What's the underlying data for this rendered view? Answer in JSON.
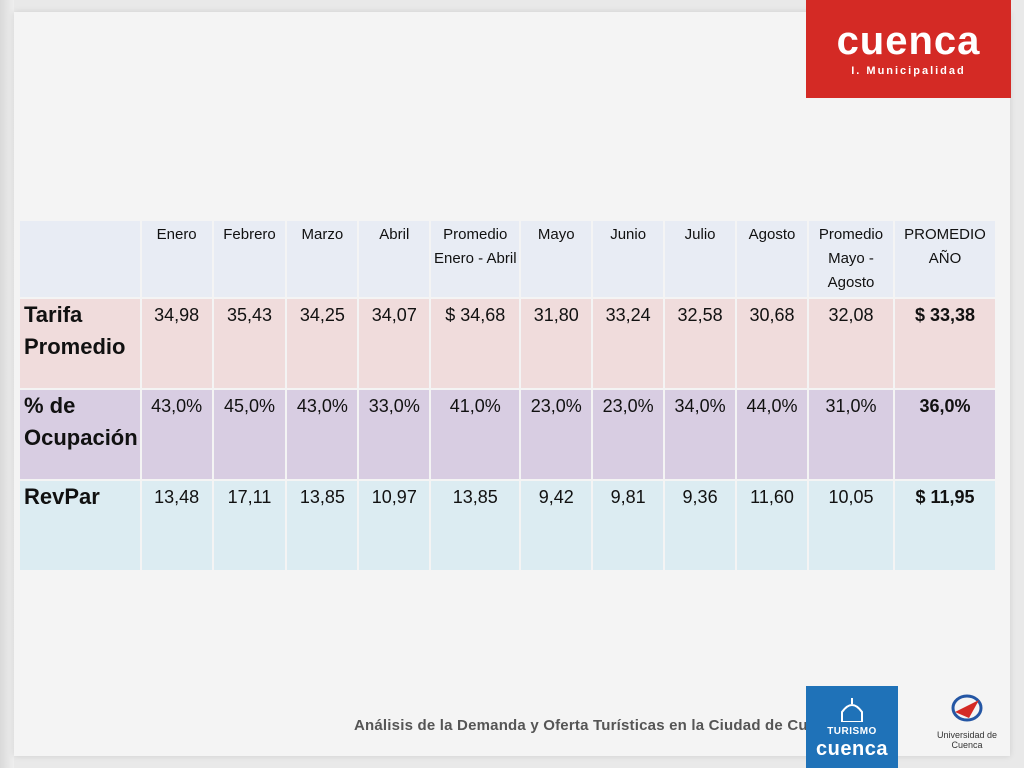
{
  "header": {
    "logo_word": "cuenca",
    "logo_sub": "I. Municipalidad"
  },
  "table": {
    "columns": [
      "Enero",
      "Febrero",
      "Marzo",
      "Abril",
      "Promedio Enero - Abril",
      "Mayo",
      "Junio",
      "Julio",
      "Agosto",
      "Promedio Mayo - Agosto",
      "PROMEDIO AÑO"
    ],
    "rows": [
      {
        "label": "Tarifa Promedio",
        "values": [
          "34,98",
          "35,43",
          "34,25",
          "34,07",
          "$ 34,68",
          "31,80",
          "33,24",
          "32,58",
          "30,68",
          "32,08",
          "$ 33,38"
        ]
      },
      {
        "label": "% de Ocupación",
        "values": [
          "43,0%",
          "45,0%",
          "43,0%",
          "33,0%",
          "41,0%",
          "23,0%",
          "23,0%",
          "34,0%",
          "44,0%",
          "31,0%",
          "36,0%"
        ]
      },
      {
        "label": "RevPar",
        "values": [
          "13,48",
          "17,11",
          "13,85",
          "10,97",
          "13,85",
          "9,42",
          "9,81",
          "9,36",
          "11,60",
          "10,05",
          "$ 11,95"
        ]
      }
    ]
  },
  "footer": {
    "caption": "Análisis de la Demanda y Oferta Turísticas en la Ciudad de Cuenca",
    "turismo_small": "TURISMO",
    "turismo_big": "cuenca",
    "university": "Universidad de Cuenca"
  },
  "colors": {
    "brand_red": "#d42a25",
    "brand_blue": "#1f72b8",
    "row_tarifa": "#f0dcdc",
    "row_ocupacion": "#d8cde2",
    "row_revpar": "#dcecf2",
    "header_row": "#e8ecf4"
  }
}
